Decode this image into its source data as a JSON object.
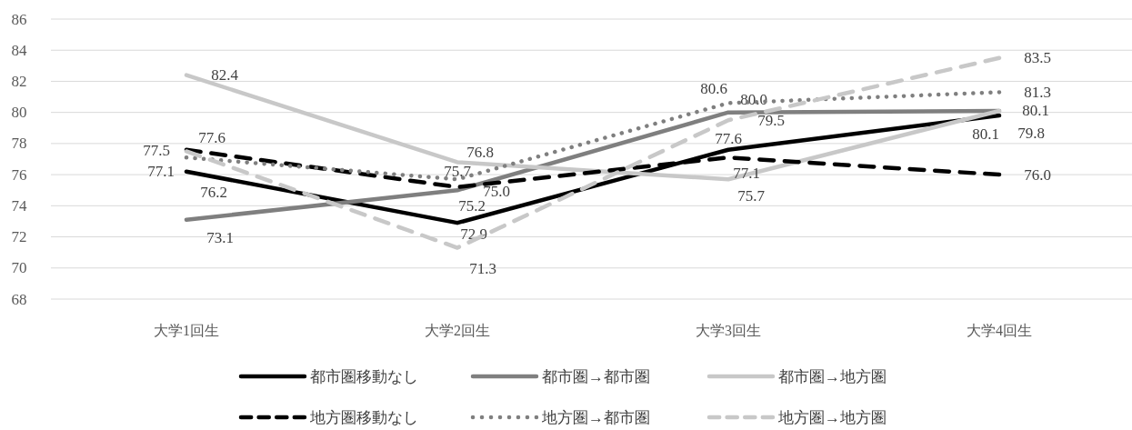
{
  "chart_data": {
    "type": "line",
    "categories": [
      "大学1回生",
      "大学2回生",
      "大学3回生",
      "大学4回生"
    ],
    "ylim": [
      68,
      86
    ],
    "yticks": [
      68,
      70,
      72,
      74,
      76,
      78,
      80,
      82,
      84,
      86
    ],
    "grid": "y",
    "legend": "bottom",
    "marker": "none",
    "series": [
      {
        "name": "都市圏移動なし",
        "color": "#000000",
        "line_style": "solid",
        "values": [
          76.2,
          72.9,
          77.6,
          79.8
        ],
        "value_labels": [
          "76.2",
          "72.9",
          "77.6",
          "79.8"
        ]
      },
      {
        "name": "都市圏→都市圏",
        "color": "#7f7f7f",
        "line_style": "solid",
        "values": [
          73.1,
          75.0,
          80.0,
          80.1
        ],
        "value_labels": [
          "73.1",
          "75.0",
          "80.0",
          "80.1"
        ]
      },
      {
        "name": "都市圏→地方圏",
        "color": "#c8c8c8",
        "line_style": "solid",
        "values": [
          82.4,
          76.8,
          75.7,
          80.1
        ],
        "value_labels": [
          "82.4",
          "76.8",
          "75.7",
          "80.1"
        ]
      },
      {
        "name": "地方圏移動なし",
        "color": "#000000",
        "line_style": "dashed",
        "values": [
          77.6,
          75.2,
          77.1,
          76.0
        ],
        "value_labels": [
          "77.6",
          "75.2",
          "77.1",
          "76.0"
        ]
      },
      {
        "name": "地方圏→都市圏",
        "color": "#7f7f7f",
        "line_style": "dotted",
        "values": [
          77.1,
          75.7,
          80.6,
          81.3
        ],
        "value_labels": [
          "77.1",
          "75.7",
          "80.6",
          "81.3"
        ]
      },
      {
        "name": "地方圏→地方圏",
        "color": "#c8c8c8",
        "line_style": "dashed",
        "values": [
          77.5,
          71.3,
          79.5,
          83.5
        ],
        "value_labels": [
          "77.5",
          "71.3",
          "79.5",
          "83.5"
        ]
      }
    ]
  }
}
